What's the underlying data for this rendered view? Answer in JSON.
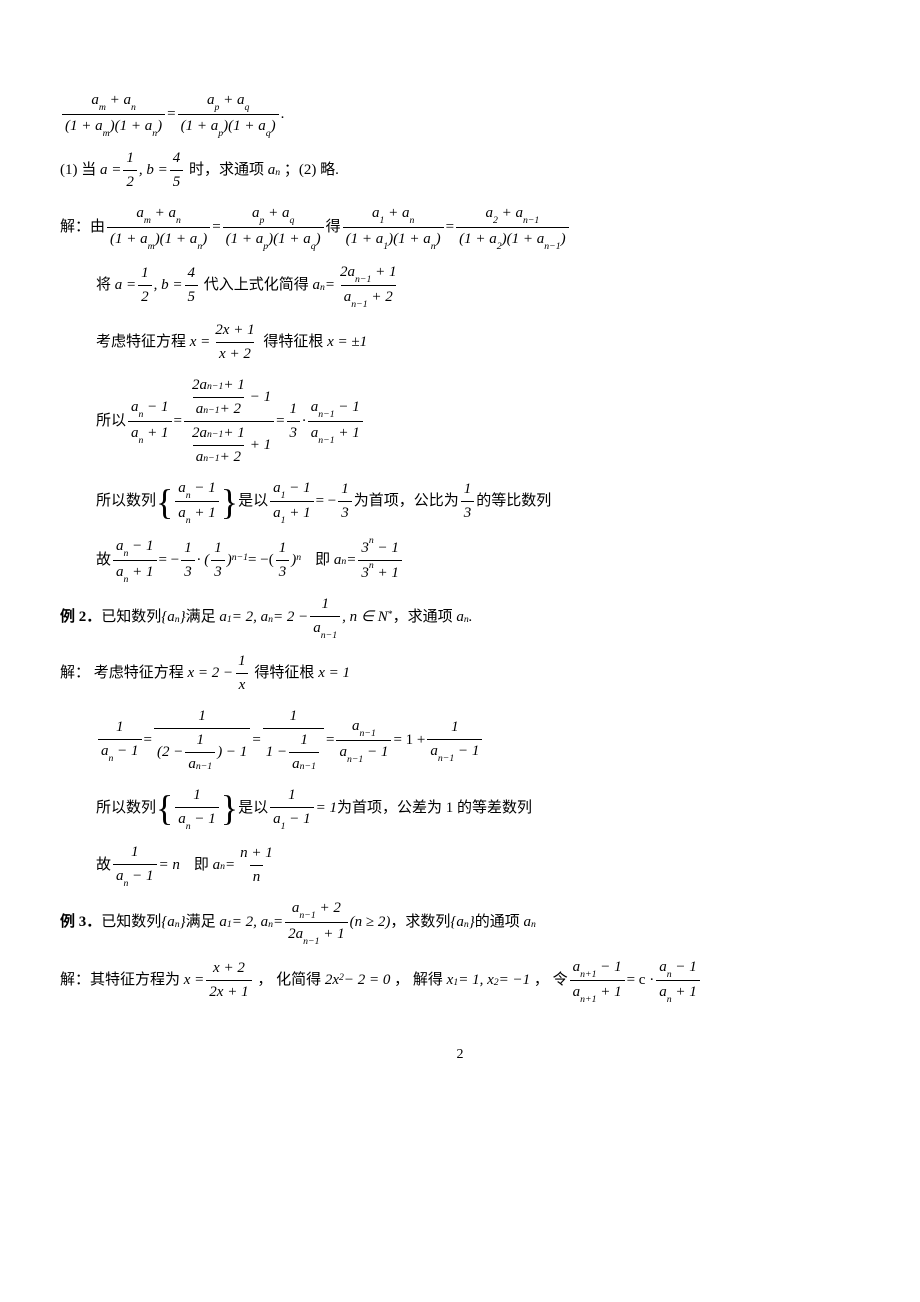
{
  "text_fontsize": 15,
  "math_font": "Times New Roman (italic)",
  "cjk_font": "SimSun",
  "text_color": "#000000",
  "background_color": "#ffffff",
  "page_number": "2",
  "lines": {
    "l0_tail": ".",
    "l1_pre": "(1) 当",
    "l1_mid": "时，求通项",
    "l1_post": "；(2) 略.",
    "l2_pre": "解：由",
    "l2_mid": "得",
    "l3_pre": "将",
    "l3_mid": "代入上式化简得",
    "l4_pre": "考虑特征方程",
    "l4_mid": "得特征根",
    "l5_pre": "所以",
    "l6_pre": "所以数列",
    "l6_mid1": "是以",
    "l6_mid2": "为首项，公比为",
    "l6_post": "的等比数列",
    "l7_pre": "故",
    "l7_mid": "即",
    "ex2_label": "例 2．",
    "ex2_pre": "已知数列",
    "ex2_mid": "满足",
    "ex2_post": "，求通项",
    "s2l1_pre": "解： 考虑特征方程",
    "s2l1_mid": "得特征根",
    "s2l3_pre": "所以数列",
    "s2l3_mid1": "是以",
    "s2l3_mid2": "为首项，公差为 1 的等差数列",
    "s2l4_pre": "故",
    "s2l4_mid": "即",
    "ex3_label": "例 3．",
    "ex3_pre": "已知数列",
    "ex3_mid1": "满足",
    "ex3_mid2": "，求数列",
    "ex3_post": "的通项",
    "s3l1_pre": "解：其特征方程为",
    "s3l1_mid1": "， 化简得",
    "s3l1_mid2": "， 解得",
    "s3l1_mid3": "， 令"
  },
  "formulas": {
    "one_half": {
      "num": "1",
      "den": "2"
    },
    "four_fifth": {
      "num": "4",
      "den": "5"
    },
    "one_third": {
      "num": "1",
      "den": "3"
    },
    "neg_one_third": "−",
    "x_pm1": "x = ±1",
    "x_eq1": "x = 1",
    "n_in_N": "n ∈ N",
    "n_ge_2": "(n ≥ 2)",
    "two_x2_minus2": "2x² − 2 = 0",
    "x1_1_x2_neg1": "x₁ = 1, x₂ = −1"
  }
}
